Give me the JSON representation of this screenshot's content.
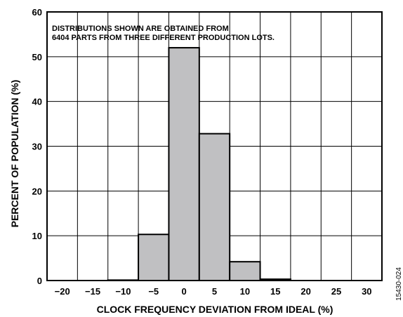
{
  "chart_data": {
    "type": "bar",
    "categories": [
      "-20",
      "-15",
      "-10",
      "-5",
      "0",
      "5",
      "10",
      "15",
      "20",
      "25",
      "30"
    ],
    "values": [
      0,
      0,
      0.1,
      10.3,
      52.0,
      32.8,
      4.2,
      0.3,
      0,
      0,
      0
    ],
    "xlabel": "CLOCK FREQUENCY DEVIATION FROM IDEAL (%)",
    "ylabel": "PERCENT OF POPULATION (%)",
    "ylim": [
      0,
      60
    ],
    "yticks": [
      "0",
      "10",
      "20",
      "30",
      "40",
      "50",
      "60"
    ],
    "xtick_labels": [
      "−20",
      "−15",
      "−10",
      "−5",
      "0",
      "5",
      "10",
      "15",
      "20",
      "25",
      "30"
    ],
    "annotation_lines": [
      "DISTRIBUTIONS SHOWN ARE OBTAINED FROM",
      "6404 PARTS FROM THREE DIFFERENT PRODUCTION LOTS."
    ],
    "grid": true,
    "bar_color": "#c0c0c2",
    "figure_code": "15430-024"
  }
}
